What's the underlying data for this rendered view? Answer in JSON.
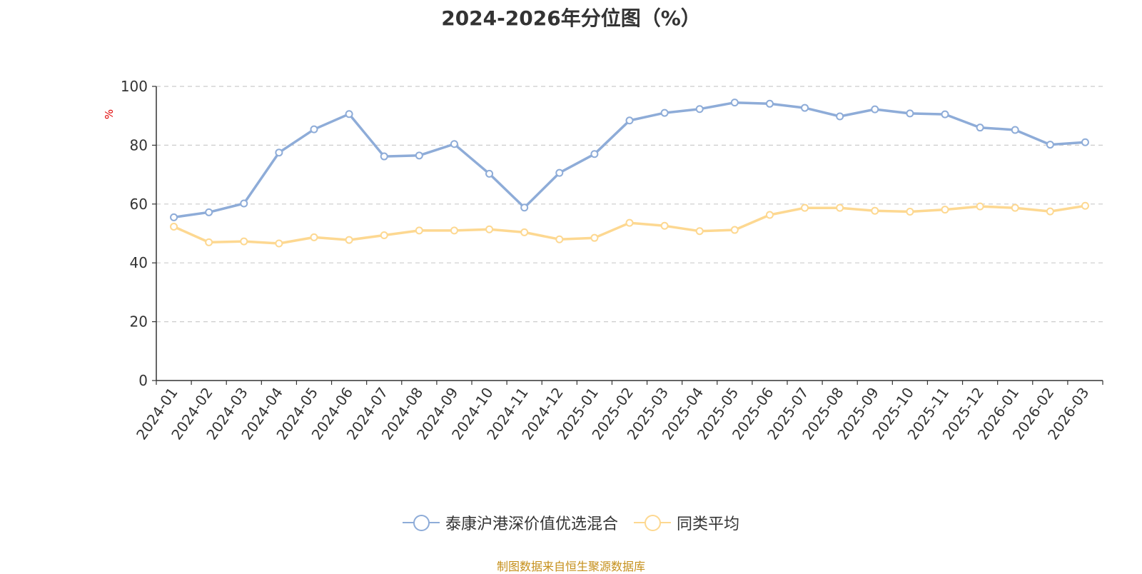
{
  "chart_data": {
    "type": "line",
    "title": "2024-2026年分位图（%）",
    "ylabel": "%",
    "xlabel": "",
    "ylim": [
      0,
      100
    ],
    "yticks": [
      0,
      20,
      40,
      60,
      80,
      100
    ],
    "grid": true,
    "legend_position": "bottom",
    "categories": [
      "2024-01",
      "2024-02",
      "2024-03",
      "2024-04",
      "2024-05",
      "2024-06",
      "2024-07",
      "2024-08",
      "2024-09",
      "2024-10",
      "2024-11",
      "2024-12",
      "2025-01",
      "2025-02",
      "2025-03",
      "2025-04",
      "2025-05",
      "2025-06",
      "2025-07",
      "2025-08",
      "2025-09",
      "2025-10",
      "2025-11",
      "2025-12",
      "2026-01",
      "2026-02",
      "2026-03"
    ],
    "series": [
      {
        "name": "泰康沪港深价值优选混合",
        "color": "#8eacd8",
        "values": [
          55.5,
          57.2,
          60.2,
          77.5,
          85.4,
          90.6,
          76.2,
          76.5,
          80.4,
          70.3,
          58.8,
          70.6,
          77.0,
          88.4,
          91.0,
          92.3,
          94.5,
          94.1,
          92.7,
          89.8,
          92.2,
          90.8,
          90.5,
          86.0,
          85.2,
          80.2,
          81.0
        ]
      },
      {
        "name": "同类平均",
        "color": "#fdd891",
        "values": [
          52.3,
          47.0,
          47.3,
          46.6,
          48.7,
          47.8,
          49.4,
          51.0,
          51.0,
          51.4,
          50.4,
          48.0,
          48.5,
          53.6,
          52.6,
          50.8,
          51.2,
          56.3,
          58.7,
          58.7,
          57.7,
          57.4,
          58.1,
          59.2,
          58.7,
          57.5,
          59.4
        ]
      }
    ]
  },
  "source_text": "制图数据来自恒生聚源数据库"
}
